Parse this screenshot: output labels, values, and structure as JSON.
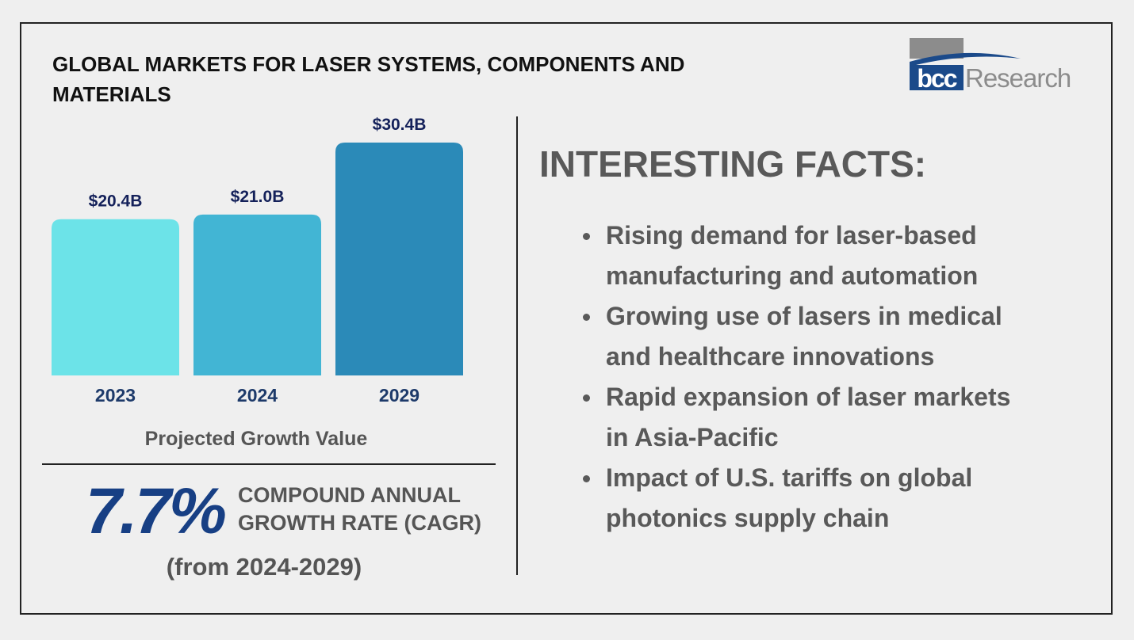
{
  "title": "GLOBAL MARKETS FOR LASER SYSTEMS, COMPONENTS AND MATERIALS",
  "logo": {
    "text_bold": "bcc",
    "text_light": "Research",
    "colors": {
      "navy": "#1b4a8a",
      "gray": "#8c8c8c"
    }
  },
  "chart_data": {
    "type": "bar",
    "title": "",
    "xlabel": "Projected Growth Value",
    "ylabel": "",
    "categories": [
      "2023",
      "2024",
      "2029"
    ],
    "values": [
      20.4,
      21.0,
      30.4
    ],
    "data_labels": [
      "$20.4B",
      "$21.0B",
      "$30.4B"
    ],
    "unit": "USD billions",
    "ylim": [
      0,
      34
    ],
    "grid": false,
    "colors": [
      "#6ce3e8",
      "#42b5d4",
      "#2b8ab8"
    ]
  },
  "cagr": {
    "value": "7.7%",
    "label_line1": "COMPOUND ANNUAL",
    "label_line2": "GROWTH RATE (CAGR)",
    "range": "(from 2024-2029)"
  },
  "facts": {
    "heading": "INTERESTING FACTS:",
    "items": [
      {
        "line1": "Rising demand for laser-based",
        "line2": "manufacturing and automation"
      },
      {
        "line1": "Growing use of lasers in medical",
        "line2": "and healthcare innovations"
      },
      {
        "line1": "Rapid expansion of laser markets",
        "line2": "in Asia-Pacific"
      },
      {
        "line1": "Impact of U.S. tariffs on global",
        "line2": "photonics supply chain"
      }
    ]
  }
}
